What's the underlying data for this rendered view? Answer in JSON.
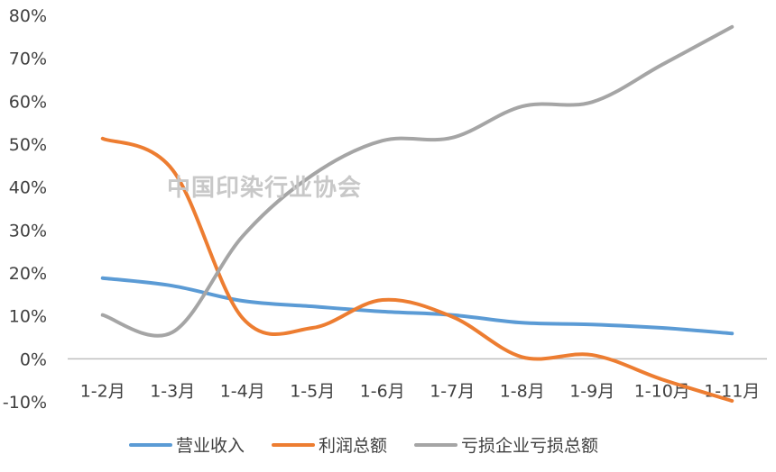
{
  "watermark": "中国印染行业协会",
  "chart_data": {
    "type": "line",
    "categories": [
      "1-2月",
      "1-3月",
      "1-4月",
      "1-5月",
      "1-6月",
      "1-7月",
      "1-8月",
      "1-9月",
      "1-10月",
      "1-11月"
    ],
    "y_ticks": [
      "80%",
      "70%",
      "60%",
      "50%",
      "40%",
      "30%",
      "20%",
      "10%",
      "0%",
      "-10%"
    ],
    "ylim": [
      -10,
      80
    ],
    "y_unit": "%",
    "grid": false,
    "legend_position": "bottom",
    "series": [
      {
        "name": "营业收入",
        "color": "#5b9bd5",
        "values": [
          18.8,
          17.0,
          13.5,
          12.2,
          11.0,
          10.2,
          8.4,
          8.0,
          7.2,
          5.9
        ]
      },
      {
        "name": "利润总额",
        "color": "#ed7d31",
        "values": [
          51.3,
          44.0,
          9.5,
          7.2,
          13.7,
          9.8,
          0.4,
          0.9,
          -4.8,
          -9.8
        ]
      },
      {
        "name": "亏损企业亏损总额",
        "color": "#a5a5a5",
        "values": [
          10.2,
          6.2,
          28.5,
          42.8,
          50.8,
          51.5,
          58.8,
          59.8,
          68.5,
          77.3
        ]
      }
    ]
  }
}
